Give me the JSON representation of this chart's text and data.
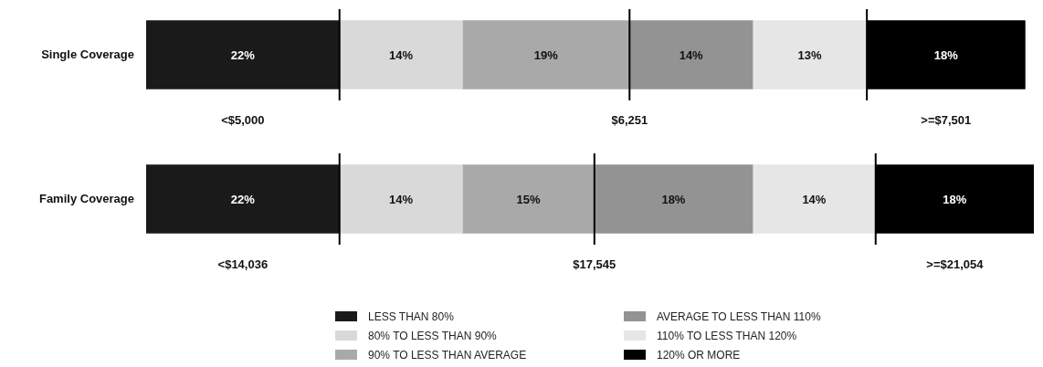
{
  "chart_data": [
    {
      "type": "bar",
      "orientation": "horizontal",
      "stacked": true,
      "categories": [
        "Single Coverage"
      ],
      "series": [
        {
          "color": "#1a1a1a",
          "values": [
            22
          ],
          "value_labels": [
            "22%"
          ]
        },
        {
          "color": "#d9d9d9",
          "values": [
            14
          ],
          "value_labels": [
            "14%"
          ]
        },
        {
          "color": "#a9a9a9",
          "values": [
            19
          ],
          "value_labels": [
            "19%"
          ]
        },
        {
          "color": "#939393",
          "values": [
            14
          ],
          "value_labels": [
            "14%"
          ]
        },
        {
          "color": "#e6e6e6",
          "values": [
            13
          ],
          "value_labels": [
            "13%"
          ]
        },
        {
          "color": "#000000",
          "values": [
            18
          ],
          "value_labels": [
            "18%"
          ]
        }
      ],
      "ref_lines": [
        {
          "axis": "x",
          "value": 22
        },
        {
          "axis": "x",
          "value": 55
        },
        {
          "axis": "x",
          "value": 82
        }
      ],
      "annotations": [
        "<$5,000",
        "$6,251",
        ">=$7,501"
      ]
    },
    {
      "type": "bar",
      "orientation": "horizontal",
      "stacked": true,
      "categories": [
        "Family Coverage"
      ],
      "series": [
        {
          "name": "LESS THAN 80%",
          "color": "#1a1a1a",
          "values": [
            22
          ],
          "value_labels": [
            "22%"
          ]
        },
        {
          "name": "80% TO LESS THAN 90%",
          "color": "#d9d9d9",
          "values": [
            14
          ],
          "value_labels": [
            "14%"
          ]
        },
        {
          "name": "90% TO LESS THAN AVERAGE",
          "color": "#a9a9a9",
          "values": [
            15
          ],
          "value_labels": [
            "15%"
          ]
        },
        {
          "name": "AVERAGE TO LESS THAN 110%",
          "color": "#939393",
          "values": [
            18
          ],
          "value_labels": [
            "18%"
          ]
        },
        {
          "name": "110% TO LESS THAN 120%",
          "color": "#e6e6e6",
          "values": [
            14
          ],
          "value_labels": [
            "14%"
          ]
        },
        {
          "name": "120% OR MORE",
          "color": "#000000",
          "values": [
            18
          ],
          "value_labels": [
            "18%"
          ]
        }
      ],
      "legend": "bottom",
      "ref_lines": [
        {
          "axis": "x",
          "value": 22
        },
        {
          "axis": "x",
          "value": 51
        },
        {
          "axis": "x",
          "value": 83
        }
      ],
      "annotations": [
        "<$14,036",
        "$17,545",
        ">=$21,054"
      ]
    }
  ]
}
